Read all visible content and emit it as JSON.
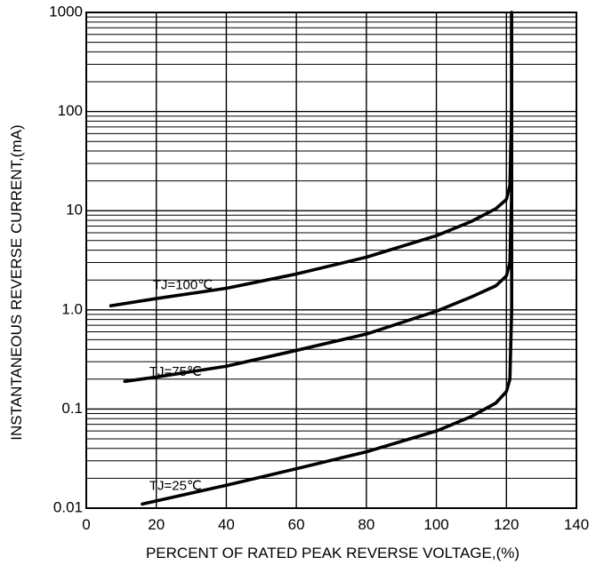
{
  "chart_data": {
    "type": "line",
    "title": "",
    "xlabel": "PERCENT OF RATED PEAK REVERSE VOLTAGE,(%)",
    "ylabel": "INSTANTANEOUS REVERSE CURRENT,(mA)",
    "xlim": [
      0,
      140
    ],
    "ylim": [
      0.01,
      1000
    ],
    "yscale": "log",
    "grid": true,
    "x_ticks": [
      0,
      20,
      40,
      60,
      80,
      100,
      120,
      140
    ],
    "x_tick_labels": [
      "0",
      "20",
      "40",
      "60",
      "80",
      "100",
      "120",
      "140"
    ],
    "y_ticks": [
      0.01,
      0.1,
      1.0,
      10,
      100,
      1000
    ],
    "y_tick_labels": [
      "0.01",
      "0.1",
      "1.0",
      "10",
      "100",
      "1000"
    ],
    "series": [
      {
        "name": "TJ=100℃",
        "label_at": [
          19,
          1.75
        ],
        "points": [
          [
            7,
            1.1
          ],
          [
            20,
            1.3
          ],
          [
            40,
            1.65
          ],
          [
            60,
            2.3
          ],
          [
            80,
            3.4
          ],
          [
            100,
            5.6
          ],
          [
            110,
            7.8
          ],
          [
            117,
            10.5
          ],
          [
            120,
            13
          ],
          [
            121,
            18
          ],
          [
            121.5,
            100
          ],
          [
            121.5,
            1000
          ]
        ]
      },
      {
        "name": "TJ=75℃",
        "label_at": [
          18,
          0.235
        ],
        "points": [
          [
            11,
            0.19
          ],
          [
            20,
            0.21
          ],
          [
            40,
            0.27
          ],
          [
            60,
            0.39
          ],
          [
            80,
            0.57
          ],
          [
            100,
            0.97
          ],
          [
            110,
            1.35
          ],
          [
            117,
            1.75
          ],
          [
            120,
            2.2
          ],
          [
            121,
            3
          ],
          [
            121.5,
            15
          ],
          [
            121.5,
            1000
          ]
        ]
      },
      {
        "name": "TJ=25℃",
        "label_at": [
          18,
          0.0165
        ],
        "points": [
          [
            16,
            0.011
          ],
          [
            40,
            0.017
          ],
          [
            60,
            0.025
          ],
          [
            80,
            0.037
          ],
          [
            100,
            0.06
          ],
          [
            110,
            0.084
          ],
          [
            117,
            0.115
          ],
          [
            120,
            0.15
          ],
          [
            121,
            0.2
          ],
          [
            121.5,
            1
          ],
          [
            121.5,
            1000
          ]
        ]
      }
    ]
  }
}
